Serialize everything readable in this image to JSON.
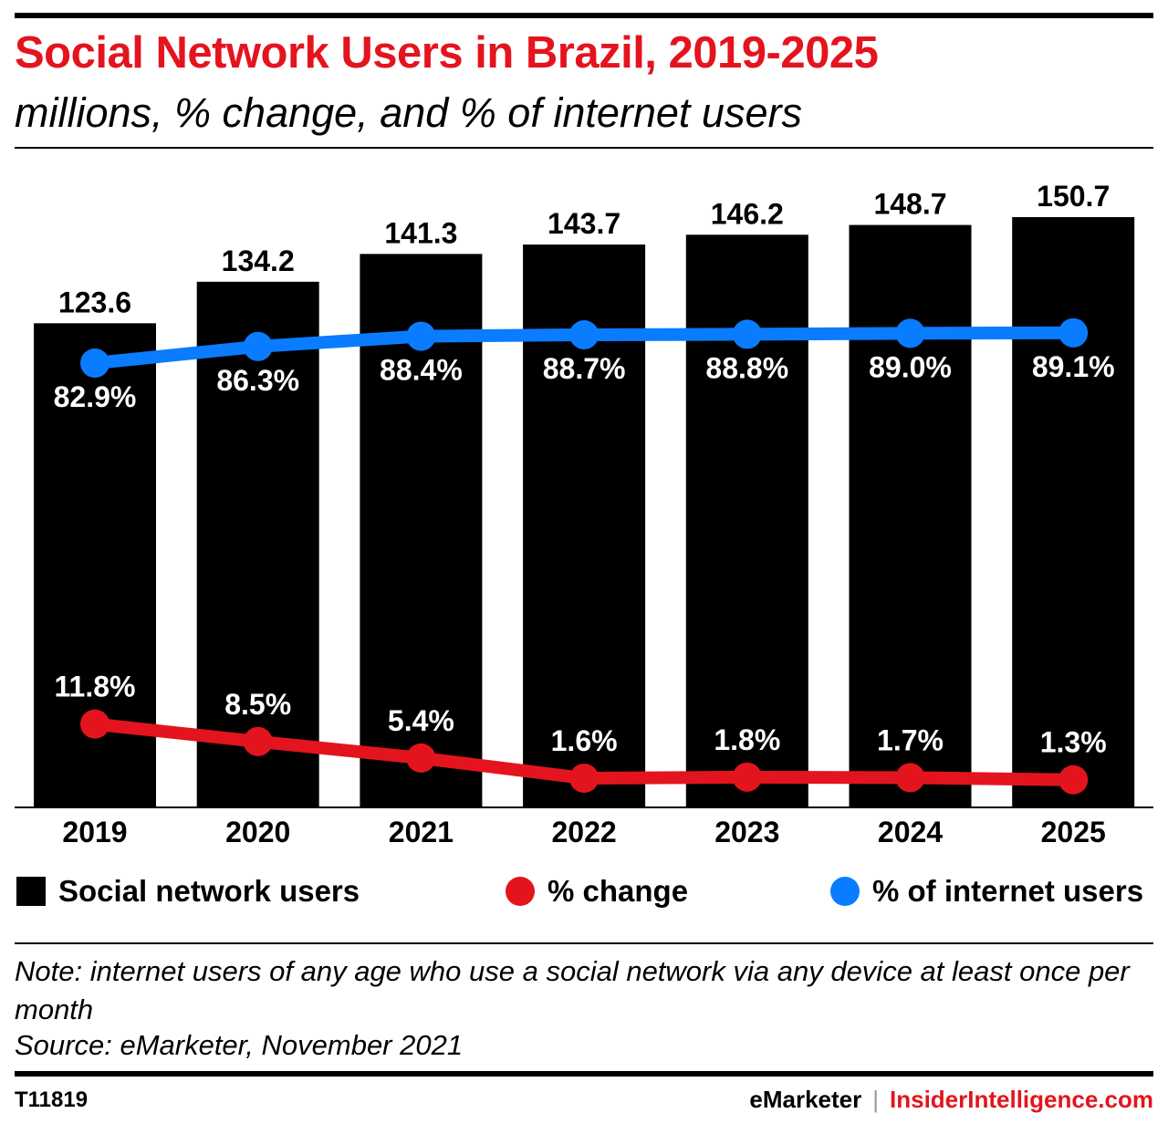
{
  "title": "Social Network Users in Brazil, 2019-2025",
  "subtitle": "millions, % change, and % of internet users",
  "colors": {
    "bars": "#000000",
    "pct_change": "#e4141e",
    "pct_internet": "#0a7cff",
    "title": "#e4141e"
  },
  "legend": {
    "bars": "Social network users",
    "pct_change": "% change",
    "pct_internet": "% of internet users"
  },
  "note": "Note: internet users of any age who use a social network via any device at least once per month",
  "source": "Source: eMarketer, November 2021",
  "footer": {
    "chart_id": "T11819",
    "brand_left": "eMarketer",
    "brand_sep": "|",
    "brand_right": "InsiderIntelligence.com"
  },
  "chart_data": {
    "type": "bar",
    "categories": [
      "2019",
      "2020",
      "2021",
      "2022",
      "2023",
      "2024",
      "2025"
    ],
    "series": [
      {
        "name": "Social network users",
        "type": "bar",
        "values": [
          123.6,
          134.2,
          141.3,
          143.7,
          146.2,
          148.7,
          150.7
        ],
        "labels": [
          "123.6",
          "134.2",
          "141.3",
          "143.7",
          "146.2",
          "148.7",
          "150.7"
        ]
      },
      {
        "name": "% change",
        "type": "line",
        "values": [
          11.8,
          8.5,
          5.4,
          1.6,
          1.8,
          1.7,
          1.3
        ],
        "labels": [
          "11.8%",
          "8.5%",
          "5.4%",
          "1.6%",
          "1.8%",
          "1.7%",
          "1.3%"
        ]
      },
      {
        "name": "% of internet users",
        "type": "line",
        "values": [
          82.9,
          86.3,
          88.4,
          88.7,
          88.8,
          89.0,
          89.1
        ],
        "labels": [
          "82.9%",
          "86.3%",
          "88.4%",
          "88.7%",
          "88.8%",
          "89.0%",
          "89.1%"
        ]
      }
    ]
  }
}
